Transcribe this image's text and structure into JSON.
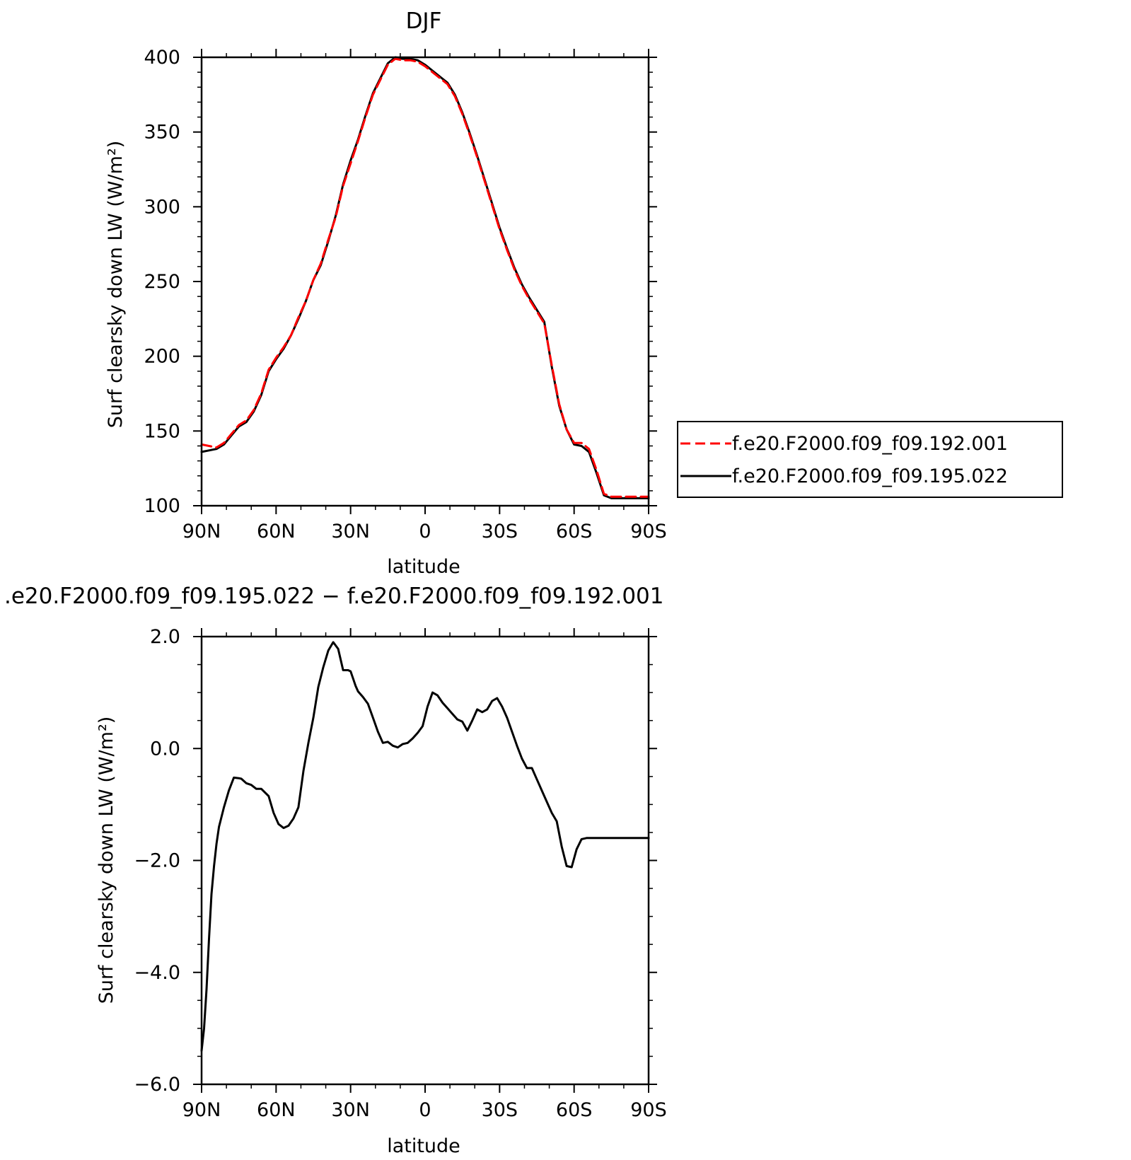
{
  "chart_data": [
    {
      "type": "line",
      "title": "DJF",
      "xlabel": "latitude",
      "ylabel": "Surf clearsky down LW (W/m²)",
      "xlim": [
        90,
        -90
      ],
      "ylim": [
        100,
        400
      ],
      "x_ticks": [
        {
          "value": 90,
          "label": "90N"
        },
        {
          "value": 60,
          "label": "60N"
        },
        {
          "value": 30,
          "label": "30N"
        },
        {
          "value": 0,
          "label": "0"
        },
        {
          "value": -30,
          "label": "30S"
        },
        {
          "value": -60,
          "label": "60S"
        },
        {
          "value": -90,
          "label": "90S"
        }
      ],
      "y_ticks": [
        {
          "value": 100,
          "label": "100"
        },
        {
          "value": 150,
          "label": "150"
        },
        {
          "value": 200,
          "label": "200"
        },
        {
          "value": 250,
          "label": "250"
        },
        {
          "value": 300,
          "label": "300"
        },
        {
          "value": 350,
          "label": "350"
        },
        {
          "value": 400,
          "label": "400"
        }
      ],
      "legend_position": "right",
      "series": [
        {
          "name": "f.e20.F2000.f09_f09.192.001",
          "color": "#ff0000",
          "dash": "dashed",
          "x": [
            90,
            87,
            84,
            81,
            78,
            75,
            72,
            69,
            66,
            63,
            60,
            57,
            54,
            51,
            48,
            45,
            42,
            39,
            36,
            33,
            30,
            27,
            24,
            21,
            18,
            15,
            12,
            9,
            6,
            3,
            0,
            -3,
            -6,
            -9,
            -12,
            -15,
            -18,
            -21,
            -24,
            -27,
            -30,
            -33,
            -36,
            -39,
            -42,
            -45,
            -48,
            -51,
            -54,
            -57,
            -60,
            -63,
            -66,
            -69,
            -72,
            -75,
            -78,
            -81,
            -84,
            -87,
            -90
          ],
          "y": [
            141,
            140,
            139,
            142,
            148,
            154,
            157,
            164,
            175,
            191,
            199,
            206,
            214,
            226,
            237,
            251,
            262,
            278,
            293,
            314,
            329,
            344,
            360,
            375,
            385,
            395,
            399,
            398,
            398,
            397,
            394,
            390,
            386,
            382,
            374,
            362,
            348,
            333,
            317,
            301,
            285,
            271,
            258,
            247,
            238,
            230,
            222,
            194,
            168,
            151,
            142,
            142,
            138,
            124,
            108,
            106,
            106,
            106,
            106,
            106,
            106
          ]
        },
        {
          "name": "f.e20.F2000.f09_f09.195.022",
          "color": "#000000",
          "dash": "solid",
          "x": [
            90,
            87,
            84,
            81,
            78,
            75,
            72,
            69,
            66,
            63,
            60,
            57,
            54,
            51,
            48,
            45,
            42,
            39,
            36,
            33,
            30,
            27,
            24,
            21,
            18,
            15,
            12,
            9,
            6,
            3,
            0,
            -3,
            -6,
            -9,
            -12,
            -15,
            -18,
            -21,
            -24,
            -27,
            -30,
            -33,
            -36,
            -39,
            -42,
            -45,
            -48,
            -51,
            -54,
            -57,
            -60,
            -63,
            -66,
            -69,
            -72,
            -75,
            -78,
            -81,
            -84,
            -87,
            -90
          ],
          "y": [
            136,
            137,
            138,
            141,
            147,
            153,
            156,
            163,
            174,
            190,
            198,
            205,
            214,
            225,
            237,
            251,
            261,
            277,
            294,
            315,
            331,
            345,
            361,
            376,
            386,
            396,
            400,
            399,
            399,
            398,
            395,
            391,
            387,
            383,
            375,
            363,
            349,
            334,
            318,
            302,
            286,
            272,
            259,
            248,
            239,
            231,
            223,
            193,
            167,
            151,
            141,
            140,
            136,
            122,
            107,
            105,
            105,
            105,
            105,
            105,
            105
          ]
        }
      ]
    },
    {
      "type": "line",
      "title": ".e20.F2000.f09_f09.195.022 − f.e20.F2000.f09_f09.192.001",
      "xlabel": "latitude",
      "ylabel": "Surf clearsky down LW (W/m²)",
      "xlim": [
        90,
        -90
      ],
      "ylim": [
        -6,
        2
      ],
      "x_ticks": [
        {
          "value": 90,
          "label": "90N"
        },
        {
          "value": 60,
          "label": "60N"
        },
        {
          "value": 30,
          "label": "30N"
        },
        {
          "value": 0,
          "label": "0"
        },
        {
          "value": -30,
          "label": "30S"
        },
        {
          "value": -60,
          "label": "60S"
        },
        {
          "value": -90,
          "label": "90S"
        }
      ],
      "y_ticks": [
        {
          "value": -6,
          "label": "−6.0"
        },
        {
          "value": -4,
          "label": "−4.0"
        },
        {
          "value": -2,
          "label": "−2.0"
        },
        {
          "value": 0,
          "label": "0.0"
        },
        {
          "value": 2,
          "label": "2.0"
        }
      ],
      "series": [
        {
          "name": "",
          "color": "#000000",
          "dash": "solid",
          "x": [
            90,
            89,
            88,
            87,
            86,
            85,
            84,
            83,
            81,
            79,
            77,
            75,
            74,
            73,
            72,
            70,
            68,
            66,
            63,
            61,
            59,
            57,
            55,
            53,
            51,
            49,
            47,
            45,
            43,
            41,
            39,
            37,
            35,
            33,
            31,
            30,
            29,
            28,
            27,
            25,
            23,
            21,
            19,
            17,
            15,
            13,
            11,
            9,
            7,
            5,
            3,
            1,
            -1,
            -3,
            -5,
            -7,
            -9,
            -11,
            -13,
            -15,
            -17,
            -19,
            -21,
            -23,
            -25,
            -27,
            -29,
            -31,
            -33,
            -35,
            -37,
            -39,
            -41,
            -43,
            -45,
            -47,
            -49,
            -51,
            -53,
            -55,
            -57,
            -59,
            -61,
            -63,
            -65,
            -67,
            -69,
            -71,
            -73,
            -75,
            -77,
            -79,
            -81,
            -83,
            -85,
            -86,
            -87,
            -88,
            -89,
            -90
          ],
          "y": [
            -5.4,
            -5.0,
            -4.3,
            -3.4,
            -2.6,
            -2.1,
            -1.7,
            -1.4,
            -1.05,
            -0.75,
            -0.52,
            -0.53,
            -0.54,
            -0.58,
            -0.62,
            -0.65,
            -0.72,
            -0.72,
            -0.85,
            -1.15,
            -1.35,
            -1.42,
            -1.38,
            -1.25,
            -1.05,
            -0.4,
            0.1,
            0.55,
            1.1,
            1.45,
            1.75,
            1.9,
            1.78,
            1.4,
            1.4,
            1.38,
            1.25,
            1.12,
            1.02,
            0.92,
            0.8,
            0.55,
            0.3,
            0.1,
            0.12,
            0.05,
            0.02,
            0.08,
            0.1,
            0.18,
            0.28,
            0.4,
            0.75,
            1.0,
            0.95,
            0.82,
            0.72,
            0.62,
            0.52,
            0.48,
            0.32,
            0.5,
            0.7,
            0.65,
            0.7,
            0.85,
            0.9,
            0.75,
            0.55,
            0.3,
            0.05,
            -0.18,
            -0.35,
            -0.35,
            -0.55,
            -0.75,
            -0.95,
            -1.15,
            -1.3,
            -1.75,
            -2.1,
            -2.12,
            -1.8,
            -1.62,
            -1.6,
            -1.6,
            -1.6,
            -1.6,
            -1.6,
            -1.6,
            -1.6,
            -1.6,
            -1.6,
            -1.6,
            -1.6,
            -1.6,
            -1.6,
            -1.6,
            -1.6,
            -1.6
          ]
        }
      ]
    }
  ]
}
